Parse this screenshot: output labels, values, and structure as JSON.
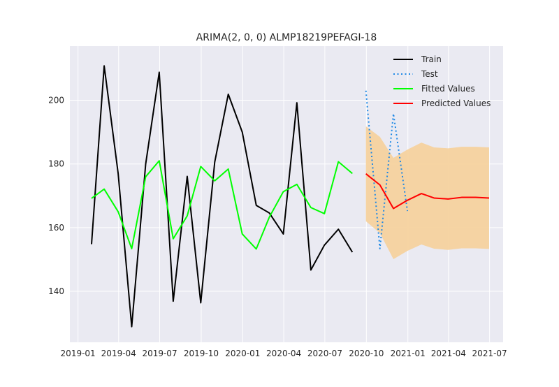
{
  "chart_data": {
    "type": "line",
    "title": "ARIMA(2, 0, 0) ALMP18219PEFAGI-18",
    "xlabel": "",
    "ylabel": "",
    "x_axis_type": "date",
    "xlim": [
      "2018-12-14",
      "2021-07-31"
    ],
    "ylim": [
      124,
      217
    ],
    "grid": true,
    "legend_position": "upper-right",
    "x_ticks": [
      {
        "label": "2019-01",
        "date": "2019-01-01"
      },
      {
        "label": "2019-04",
        "date": "2019-04-01"
      },
      {
        "label": "2019-07",
        "date": "2019-07-01"
      },
      {
        "label": "2019-10",
        "date": "2019-10-01"
      },
      {
        "label": "2020-01",
        "date": "2020-01-01"
      },
      {
        "label": "2020-04",
        "date": "2020-04-01"
      },
      {
        "label": "2020-07",
        "date": "2020-07-01"
      },
      {
        "label": "2020-10",
        "date": "2020-10-01"
      },
      {
        "label": "2021-01",
        "date": "2021-01-01"
      },
      {
        "label": "2021-04",
        "date": "2021-04-01"
      },
      {
        "label": "2021-07",
        "date": "2021-07-01"
      }
    ],
    "y_ticks": [
      140,
      160,
      180,
      200
    ],
    "series": [
      {
        "name": "Train",
        "color": "#000000",
        "style": "solid",
        "x": [
          "2019-01-31",
          "2019-02-28",
          "2019-03-31",
          "2019-04-30",
          "2019-05-31",
          "2019-06-30",
          "2019-07-31",
          "2019-08-31",
          "2019-09-30",
          "2019-10-31",
          "2019-11-30",
          "2019-12-31",
          "2020-01-31",
          "2020-02-29",
          "2020-03-31",
          "2020-04-30",
          "2020-05-31",
          "2020-06-30",
          "2020-07-31",
          "2020-08-31"
        ],
        "values": [
          154.8,
          210.8,
          177.0,
          128.9,
          180.0,
          208.8,
          136.9,
          176.1,
          136.4,
          180.6,
          201.9,
          190.0,
          167.0,
          164.6,
          158.0,
          199.2,
          146.7,
          154.5,
          159.5,
          152.3
        ]
      },
      {
        "name": "Test",
        "color": "#1e88e5",
        "style": "dotted",
        "x": [
          "2020-09-30",
          "2020-10-31",
          "2020-11-30",
          "2020-12-31"
        ],
        "values": [
          203.0,
          153.4,
          195.8,
          165.2
        ]
      },
      {
        "name": "Fitted Values",
        "color": "#00ff00",
        "style": "solid",
        "x": [
          "2019-01-31",
          "2019-02-28",
          "2019-03-31",
          "2019-04-30",
          "2019-05-31",
          "2019-06-30",
          "2019-07-31",
          "2019-08-31",
          "2019-09-30",
          "2019-10-31",
          "2019-11-30",
          "2019-12-31",
          "2020-01-31",
          "2020-02-29",
          "2020-03-31",
          "2020-04-30",
          "2020-05-31",
          "2020-06-30",
          "2020-07-31",
          "2020-08-31"
        ],
        "values": [
          169.2,
          172.1,
          165.0,
          153.4,
          176.0,
          181.0,
          156.5,
          163.7,
          179.2,
          174.7,
          178.4,
          158.0,
          153.3,
          163.3,
          171.3,
          173.6,
          166.3,
          164.4,
          180.7,
          177.0
        ]
      },
      {
        "name": "Predicted Values",
        "color": "#ff0000",
        "style": "solid",
        "x": [
          "2020-09-30",
          "2020-10-31",
          "2020-11-30",
          "2020-12-31",
          "2021-01-31",
          "2021-02-28",
          "2021-03-31",
          "2021-04-30",
          "2021-05-31",
          "2021-06-30"
        ],
        "values": [
          176.9,
          173.4,
          166.0,
          168.6,
          170.7,
          169.3,
          169.0,
          169.5,
          169.5,
          169.3
        ]
      }
    ],
    "confidence_band": {
      "color": "#f5d29e",
      "x": [
        "2020-09-30",
        "2020-10-31",
        "2020-11-30",
        "2020-12-31",
        "2021-01-31",
        "2021-02-28",
        "2021-03-31",
        "2021-04-30",
        "2021-05-31",
        "2021-06-30"
      ],
      "lower": [
        162.0,
        158.3,
        150.1,
        152.7,
        154.7,
        153.4,
        153.0,
        153.5,
        153.5,
        153.3
      ],
      "upper": [
        191.8,
        188.5,
        181.9,
        184.5,
        186.7,
        185.2,
        184.9,
        185.4,
        185.4,
        185.2
      ]
    }
  }
}
